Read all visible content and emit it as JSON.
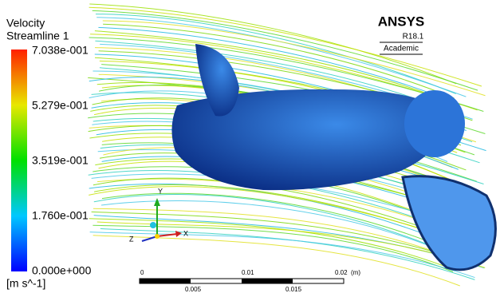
{
  "legend": {
    "title": "Velocity",
    "subtitle": "Streamline 1",
    "labels": [
      "7.038e-001",
      "5.279e-001",
      "3.519e-001",
      "1.760e-001",
      "0.000e+000"
    ],
    "units": "[m s^-1]"
  },
  "logo": {
    "name": "ANSYS",
    "version": "R18.1",
    "license": "Academic"
  },
  "triad": {
    "y": "Y",
    "x": "X",
    "z": "Z"
  },
  "scale_bar": {
    "top_labels": [
      "0",
      "0.01",
      "0.02",
      "(m)"
    ],
    "bottom_labels": [
      "0.005",
      "0.015"
    ]
  }
}
